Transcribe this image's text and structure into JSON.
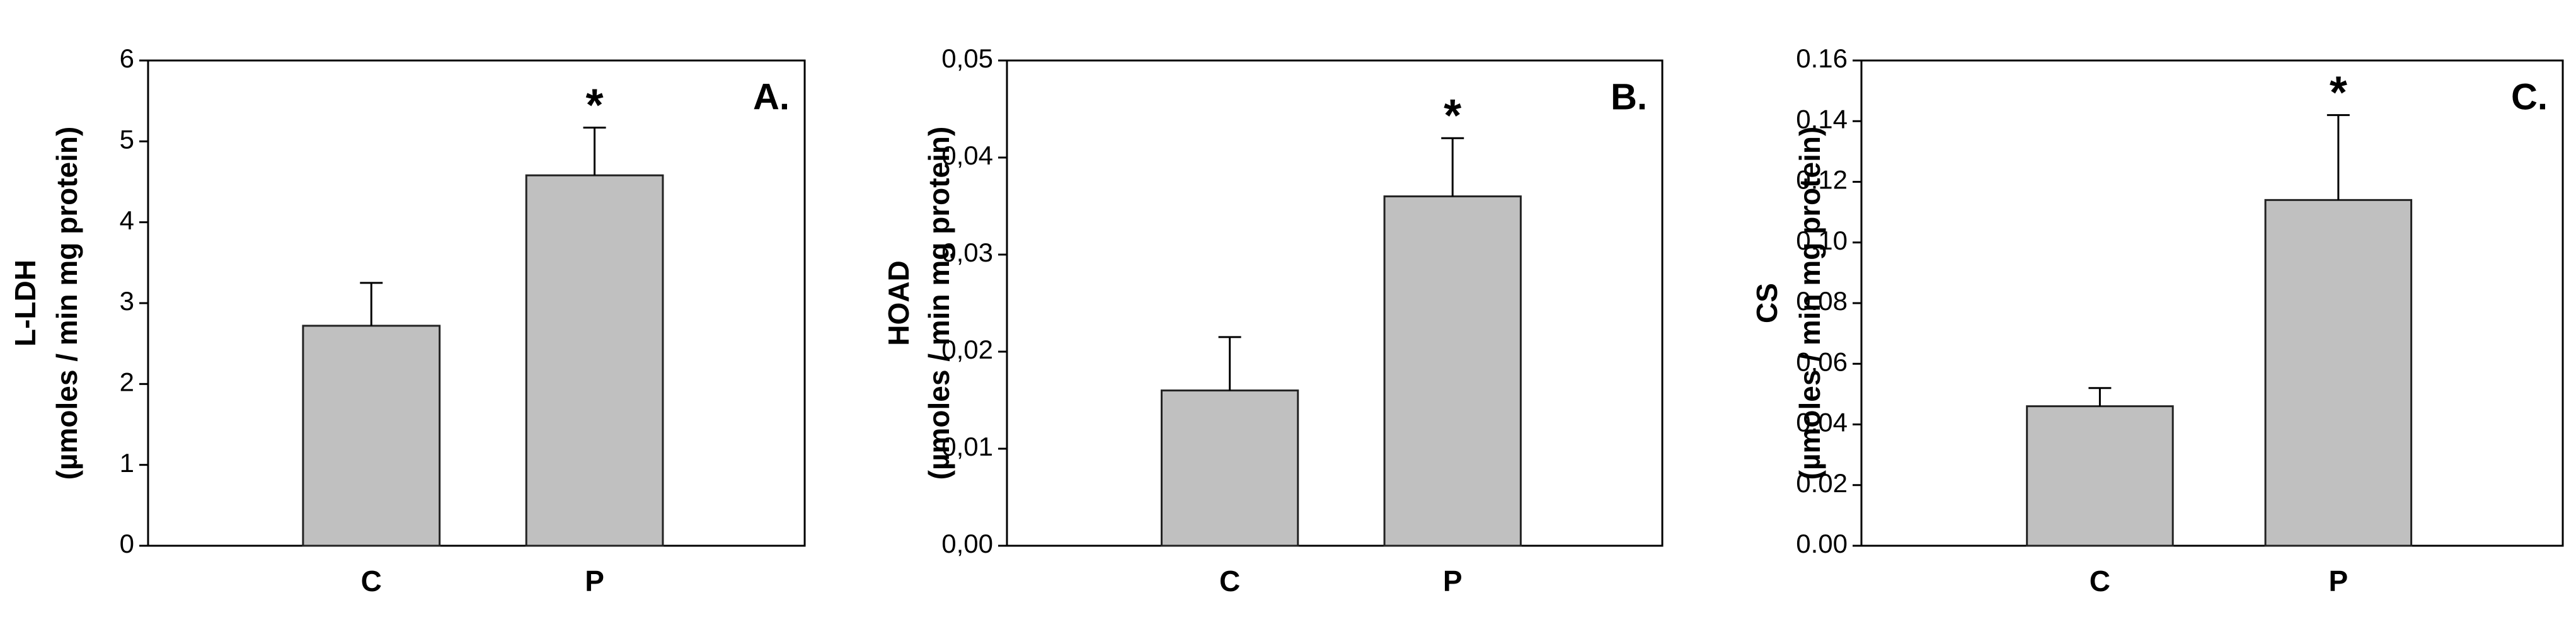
{
  "chart_data": [
    {
      "type": "bar",
      "panel_label": "A.",
      "ylabel": [
        "L-LDH",
        "(µmoles / min mg protein)"
      ],
      "categories": [
        "C",
        "P"
      ],
      "values": [
        2.72,
        4.58
      ],
      "errors": [
        0.53,
        0.59
      ],
      "value_annotations": [
        null,
        "*"
      ],
      "color": "#c0c0c0",
      "ylim": [
        0,
        6
      ],
      "yticks": [
        0,
        1,
        2,
        3,
        4,
        5,
        6
      ]
    },
    {
      "type": "bar",
      "panel_label": "B.",
      "ylabel": [
        "HOAD",
        "(µmoles / min mg protein)"
      ],
      "categories": [
        "C",
        "P"
      ],
      "values": [
        0.016,
        0.036
      ],
      "errors": [
        0.0055,
        0.006
      ],
      "value_annotations": [
        null,
        "*"
      ],
      "color": "#c0c0c0",
      "ylim": [
        0,
        0.05
      ],
      "yticks": [
        {
          "value": 0,
          "label": "0,00"
        },
        {
          "value": 0.01,
          "label": "0,01"
        },
        {
          "value": 0.02,
          "label": "0,02"
        },
        {
          "value": 0.03,
          "label": "0,03"
        },
        {
          "value": 0.04,
          "label": "0,04"
        },
        {
          "value": 0.05,
          "label": "0,05"
        }
      ]
    },
    {
      "type": "bar",
      "panel_label": "C.",
      "ylabel": [
        "CS",
        "(µmoles / min mg protein)"
      ],
      "categories": [
        "C",
        "P"
      ],
      "values": [
        0.046,
        0.114
      ],
      "errors": [
        0.006,
        0.028
      ],
      "value_annotations": [
        null,
        "*"
      ],
      "color": "#c0c0c0",
      "ylim": [
        0,
        0.16
      ],
      "yticks": [
        {
          "value": 0,
          "label": "0.00"
        },
        {
          "value": 0.02,
          "label": "0.02"
        },
        {
          "value": 0.04,
          "label": "0.04"
        },
        {
          "value": 0.06,
          "label": "0.06"
        },
        {
          "value": 0.08,
          "label": "0.08"
        },
        {
          "value": 0.1,
          "label": "0.10"
        },
        {
          "value": 0.12,
          "label": "0.12"
        },
        {
          "value": 0.14,
          "label": "0.14"
        },
        {
          "value": 0.16,
          "label": "0.16"
        }
      ]
    }
  ]
}
